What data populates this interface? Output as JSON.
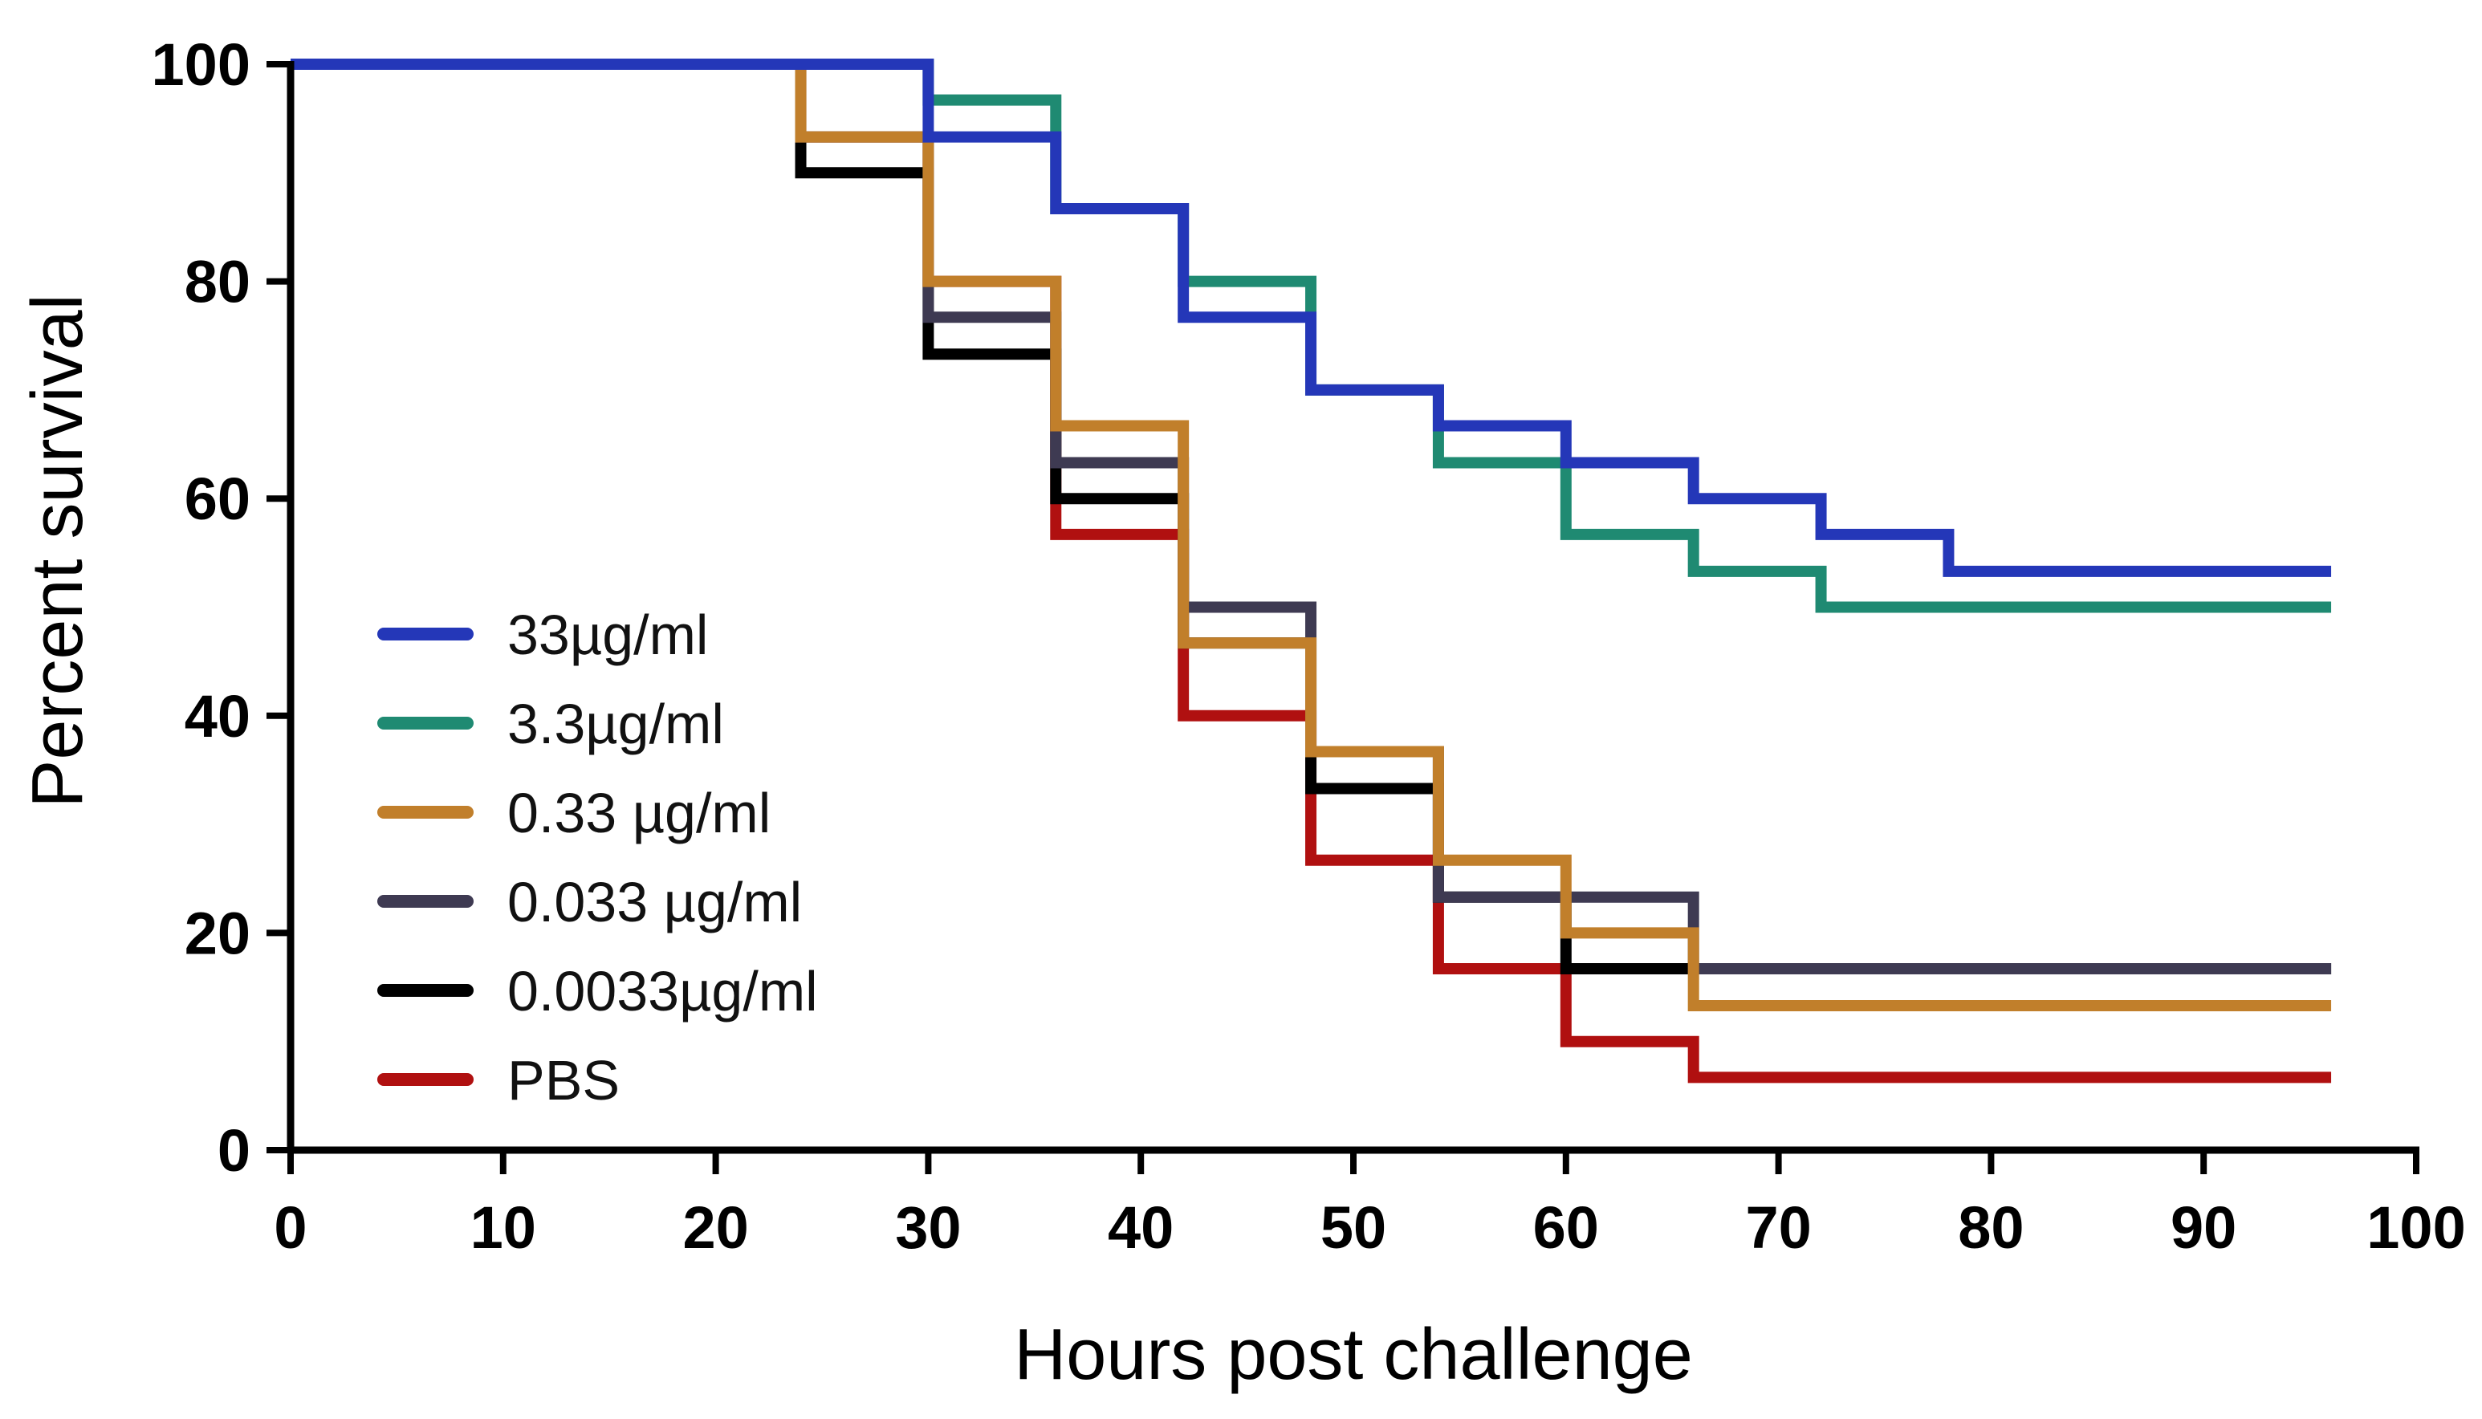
{
  "chart_data": {
    "type": "line",
    "step": true,
    "title": "",
    "xlabel": "Hours post challenge",
    "ylabel": "Percent survival",
    "xlim": [
      0,
      100
    ],
    "ylim": [
      0,
      100
    ],
    "x_ticks": [
      0,
      10,
      20,
      30,
      40,
      50,
      60,
      70,
      80,
      90,
      100
    ],
    "y_ticks": [
      0,
      20,
      40,
      60,
      80,
      100
    ],
    "x_tick_labels": [
      "0",
      "10",
      "20",
      "30",
      "40",
      "50",
      "60",
      "70",
      "80",
      "90",
      "100"
    ],
    "y_tick_labels": [
      "0",
      "20",
      "40",
      "60",
      "80",
      "100"
    ],
    "grid": false,
    "legend_position": "center-left",
    "series": [
      {
        "name": "33µg/ml",
        "color": "#2437b8",
        "x": [
          0,
          30,
          36,
          42,
          48,
          54,
          60,
          66,
          72,
          78,
          96
        ],
        "y": [
          100,
          93.3,
          86.7,
          76.7,
          70,
          66.7,
          63.3,
          60,
          56.7,
          53.3,
          53.3
        ]
      },
      {
        "name": "3.3µg/ml",
        "color": "#1f8a72",
        "x": [
          0,
          30,
          36,
          42,
          48,
          54,
          60,
          66,
          72,
          96
        ],
        "y": [
          100,
          96.7,
          86.7,
          80,
          70,
          63.3,
          56.7,
          53.3,
          50,
          50
        ]
      },
      {
        "name": "0.33 µg/ml",
        "color": "#c17f2b",
        "x": [
          0,
          24,
          30,
          36,
          42,
          48,
          54,
          60,
          66,
          96
        ],
        "y": [
          100,
          93.3,
          80,
          66.7,
          46.7,
          36.7,
          26.7,
          20,
          13.3,
          13.3
        ]
      },
      {
        "name": "0.033 µg/ml",
        "color": "#3e3a52",
        "x": [
          0,
          24,
          30,
          36,
          42,
          48,
          54,
          66,
          96
        ],
        "y": [
          100,
          93.3,
          76.7,
          63.3,
          50,
          36.7,
          23.3,
          16.7,
          16.7
        ]
      },
      {
        "name": "0.0033µg/ml",
        "color": "#000000",
        "x": [
          0,
          24,
          30,
          36,
          42,
          48,
          54,
          60,
          96
        ],
        "y": [
          100,
          90,
          73.3,
          60,
          46.7,
          33.3,
          23.3,
          16.7,
          16.7
        ]
      },
      {
        "name": "PBS",
        "color": "#b01010",
        "x": [
          0,
          24,
          30,
          36,
          42,
          48,
          54,
          60,
          66,
          96
        ],
        "y": [
          100,
          93.3,
          80,
          56.7,
          40,
          26.7,
          16.7,
          10,
          6.7,
          6.7
        ]
      }
    ]
  }
}
